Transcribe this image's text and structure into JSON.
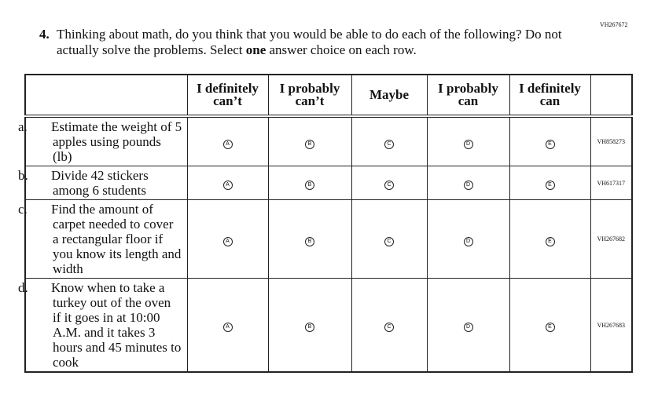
{
  "item_code": "VH267672",
  "question": {
    "number": "4.",
    "text_before": "Thinking about math, do you think that you would be able to do each of the following? Do not actually solve the problems. Select ",
    "bold": "one",
    "text_after": " answer choice on each row."
  },
  "columns": [
    "I definitely can’t",
    "I probably can’t",
    "Maybe",
    "I probably can",
    "I definitely can"
  ],
  "options": [
    "A",
    "B",
    "C",
    "D",
    "E"
  ],
  "rows": [
    {
      "letter": "a.",
      "text": "Estimate the weight of 5 apples using pounds (lb)",
      "code": "VH858273"
    },
    {
      "letter": "b.",
      "text": "Divide 42 stickers among 6 students",
      "code": "VH617317"
    },
    {
      "letter": "c.",
      "text": "Find the amount of carpet needed to cover a rectangular floor if you know its length and width",
      "code": "VH267682"
    },
    {
      "letter": "d.",
      "text": "Know when to take a turkey out of the oven if it goes in at 10:00 A.M. and it takes 3 hours and 45 minutes to cook",
      "code": "VH267683"
    }
  ]
}
